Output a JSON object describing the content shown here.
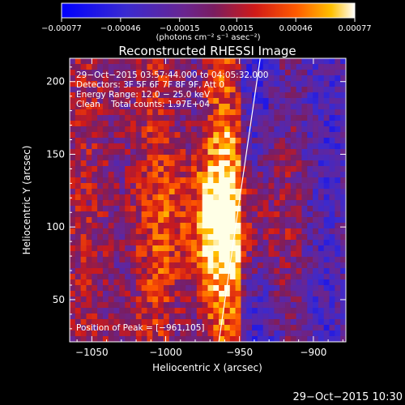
{
  "chart_data": {
    "type": "heatmap",
    "title": "Reconstructed RHESSI Image",
    "xlabel": "Heliocentric X (arcsec)",
    "ylabel": "Heliocentric Y (arcsec)",
    "xlim": [
      -1065,
      -878
    ],
    "ylim": [
      21,
      216
    ],
    "x_ticks": [
      -1050,
      -1000,
      -950,
      -900
    ],
    "x_tick_labels": [
      "−1050",
      "−1000",
      "−950",
      "−900"
    ],
    "y_ticks": [
      50,
      100,
      150,
      200
    ],
    "y_tick_labels": [
      "50",
      "100",
      "150",
      "200"
    ],
    "colorbar": {
      "range": [
        -0.00077,
        0.00077
      ],
      "ticks": [
        -0.00077,
        -0.00046,
        -0.00015,
        0.00015,
        0.00046,
        0.00077
      ],
      "tick_labels": [
        "−0.00077",
        "−0.00046",
        "−0.00015",
        "0.00015",
        "0.00046",
        "0.00077"
      ],
      "unit_label": "(photons cm⁻² s⁻¹ asec⁻²)"
    },
    "annotations": [
      "29−Oct−2015 03:57:44.000 to 04:05:32.000",
      "Detectors: 3F 5F 6F 7F 8F 9F, Att 0",
      "Energy Range: 12.0 − 25.0 keV",
      "Clean    Total counts: 1.97E+04"
    ],
    "peak_label": "Position of Peak = [−961,105]",
    "peak": {
      "x": -961,
      "y": 105,
      "value": 0.00077
    },
    "limb_line": {
      "x": [
        -964,
        -936
      ],
      "y": [
        21,
        216
      ]
    },
    "colors": {
      "low": "#2020ff",
      "mid": "#6a2590",
      "high": "#ff2a00",
      "peak": "#ffffe0"
    }
  },
  "footer": {
    "timestamp": "29−Oct−2015 10:30"
  }
}
